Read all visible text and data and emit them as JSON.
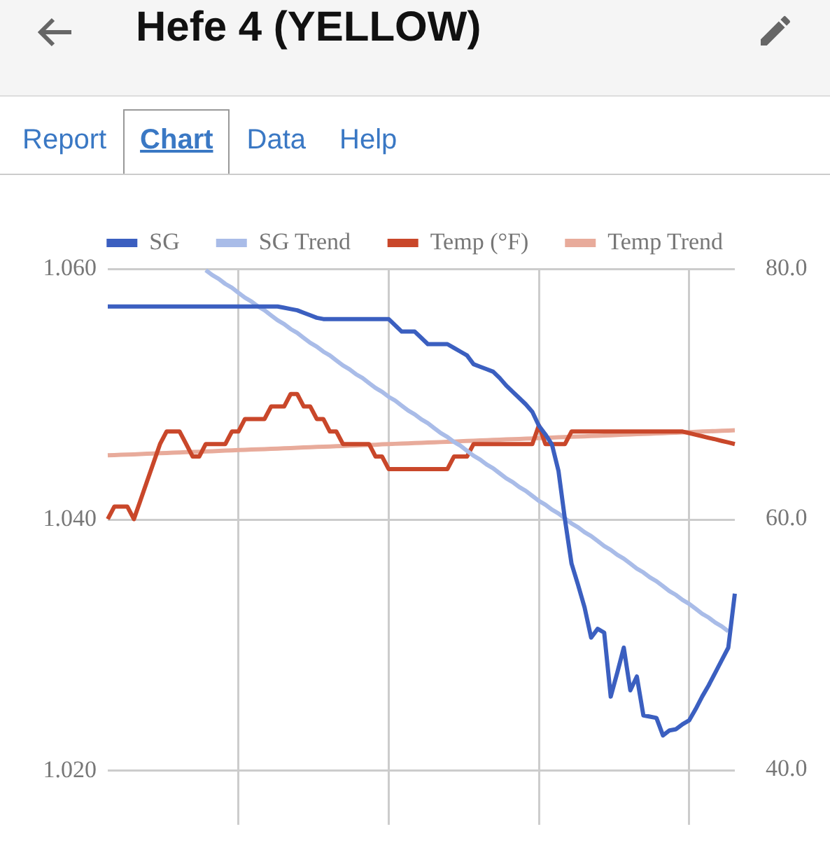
{
  "chart_data": {
    "type": "line",
    "title": "Hefe 4 (YELLOW)",
    "annotations": [
      "Report",
      "Chart",
      "Data",
      "Help"
    ],
    "categories": [
      null,
      null,
      null,
      null,
      null,
      null,
      null,
      null,
      null,
      null,
      null,
      null,
      null,
      null,
      null,
      null,
      null,
      null,
      null,
      null,
      null,
      null,
      null,
      null,
      null,
      null,
      null,
      null,
      null,
      null,
      null,
      null,
      null,
      null,
      null,
      null,
      null,
      null,
      null,
      null,
      null,
      null,
      null,
      null,
      null,
      null,
      null,
      null,
      null,
      null,
      null,
      null,
      null,
      null,
      null,
      null,
      null,
      null,
      null,
      null,
      null,
      null,
      null,
      null,
      null,
      null,
      null,
      null,
      null,
      null,
      null,
      null,
      null,
      null,
      null,
      null,
      null,
      null,
      null,
      null,
      null,
      null,
      null,
      null,
      null,
      null,
      null,
      null,
      null,
      null,
      null,
      null,
      null,
      null,
      null,
      null,
      null
    ],
    "ylim": [
      1.0157,
      1.06
    ],
    "yticks": [
      {
        "value": 1.02,
        "label": "1.020"
      },
      {
        "value": 1.04,
        "label": "1.040"
      },
      {
        "value": 1.06,
        "label": "1.060"
      }
    ],
    "y2lim": [
      35.6,
      80
    ],
    "y2ticks": [
      {
        "value": 40,
        "label": "40.0"
      },
      {
        "value": 60,
        "label": "60.0"
      },
      {
        "value": 80,
        "label": "80.0"
      }
    ],
    "series": [
      {
        "name": "SG",
        "color": "#3b5fc0",
        "values": [
          1.057,
          1.057,
          1.057,
          1.057,
          1.057,
          1.057,
          1.057,
          1.057,
          1.057,
          1.057,
          1.057,
          1.057,
          1.057,
          1.057,
          1.057,
          1.057,
          1.057,
          1.057,
          1.057,
          1.057,
          1.057,
          1.057,
          1.057,
          1.057,
          1.057,
          1.057,
          1.057,
          1.0569,
          1.0568,
          1.0567,
          1.0565,
          1.0563,
          1.0561,
          1.056,
          1.056,
          1.056,
          1.056,
          1.056,
          1.056,
          1.056,
          1.056,
          1.056,
          1.056,
          1.056,
          1.0555,
          1.055,
          1.055,
          1.055,
          1.0545,
          1.054,
          1.054,
          1.054,
          1.054,
          1.0537,
          1.0534,
          1.0531,
          1.0524,
          1.0522,
          1.052,
          1.0518,
          1.0513,
          1.0507,
          1.0502,
          1.0497,
          1.0492,
          1.0486,
          1.0475,
          1.0468,
          1.046,
          1.0439,
          1.04,
          1.0365,
          1.0348,
          1.033,
          1.0306,
          1.0313,
          1.031,
          1.0259,
          1.0278,
          1.0298,
          1.0264,
          1.0275,
          1.0244,
          1.0243,
          1.0242,
          1.0228,
          1.0232,
          1.0233,
          1.0237,
          1.024,
          1.0249,
          1.0259,
          1.0268,
          1.0278,
          1.0288,
          1.0298,
          1.0341
        ]
      },
      {
        "name": "SG Trend",
        "color": "#a9bce8",
        "values": [
          null,
          null,
          null,
          null,
          null,
          null,
          null,
          null,
          null,
          null,
          null,
          null,
          null,
          null,
          null,
          1.0599,
          1.0595,
          1.0592,
          1.0588,
          1.0585,
          1.0581,
          1.0577,
          1.0574,
          1.057,
          1.0567,
          1.0563,
          1.0559,
          1.0556,
          1.0552,
          1.0549,
          1.0545,
          1.0541,
          1.0538,
          1.0534,
          1.0531,
          1.0527,
          1.0523,
          1.052,
          1.0516,
          1.0513,
          1.0509,
          1.0505,
          1.0502,
          1.0498,
          1.0495,
          1.0491,
          1.0487,
          1.0484,
          1.048,
          1.0477,
          1.0473,
          1.0469,
          1.0466,
          1.0462,
          1.0459,
          1.0455,
          1.0451,
          1.0448,
          1.0444,
          1.0441,
          1.0437,
          1.0433,
          1.043,
          1.0426,
          1.0423,
          1.0419,
          1.0415,
          1.0412,
          1.0408,
          1.0405,
          1.0401,
          1.0397,
          1.0394,
          1.039,
          1.0387,
          1.0383,
          1.0379,
          1.0376,
          1.0372,
          1.0369,
          1.0365,
          1.0361,
          1.0358,
          1.0354,
          1.0351,
          1.0347,
          1.0343,
          1.034,
          1.0336,
          1.0333,
          1.0329,
          1.0325,
          1.0322,
          1.0318,
          1.0315,
          1.0311,
          null
        ]
      },
      {
        "name": "Temp (°F)",
        "color": "#c9472a",
        "axis": "y2",
        "values": [
          60,
          61,
          61,
          61,
          60,
          61.5,
          63,
          64.5,
          66,
          67,
          67,
          67,
          66,
          65,
          65,
          66,
          66,
          66,
          66,
          67,
          67,
          68,
          68,
          68,
          68,
          69,
          69,
          69,
          70,
          70,
          69,
          69,
          68,
          68,
          67,
          67,
          66,
          66,
          66,
          66,
          66,
          65,
          65,
          64,
          64,
          64,
          64,
          64,
          64,
          64,
          64,
          64,
          64,
          65,
          65,
          65,
          66,
          66,
          66,
          66,
          66,
          66,
          66,
          66,
          66,
          66,
          67.5,
          66,
          66,
          66,
          66,
          67,
          67,
          67,
          67,
          67,
          67,
          67,
          67,
          67,
          67,
          67,
          67,
          67,
          67,
          67,
          67,
          67,
          67,
          66.88,
          66.75,
          66.63,
          66.5,
          66.38,
          66.25,
          66.13,
          66
        ]
      },
      {
        "name": "Temp Trend",
        "color": "#e8ab9b",
        "axis": "y2",
        "values": [
          65.1,
          65.12,
          65.14,
          65.16,
          65.18,
          65.2,
          65.23,
          65.25,
          65.27,
          65.29,
          65.31,
          65.33,
          65.35,
          65.37,
          65.39,
          65.41,
          65.43,
          65.45,
          65.48,
          65.5,
          65.52,
          65.54,
          65.56,
          65.58,
          65.6,
          65.62,
          65.64,
          65.66,
          65.68,
          65.7,
          65.73,
          65.75,
          65.77,
          65.79,
          65.81,
          65.83,
          65.85,
          65.87,
          65.89,
          65.91,
          65.93,
          65.95,
          65.98,
          66,
          66.02,
          66.04,
          66.06,
          66.08,
          66.1,
          66.12,
          66.14,
          66.16,
          66.18,
          66.2,
          66.23,
          66.25,
          66.27,
          66.29,
          66.31,
          66.33,
          66.35,
          66.37,
          66.39,
          66.41,
          66.43,
          66.45,
          66.48,
          66.5,
          66.52,
          66.54,
          66.56,
          66.58,
          66.6,
          66.62,
          66.64,
          66.66,
          66.68,
          66.7,
          66.73,
          66.75,
          66.77,
          66.79,
          66.81,
          66.83,
          66.85,
          66.87,
          66.89,
          66.91,
          66.93,
          66.95,
          66.98,
          67,
          67.02,
          67.04,
          67.06,
          67.08,
          67.1
        ]
      }
    ],
    "grid": true,
    "legend": "top",
    "marker": "none",
    "line_style": "solid",
    "tick_labels": "y"
  }
}
